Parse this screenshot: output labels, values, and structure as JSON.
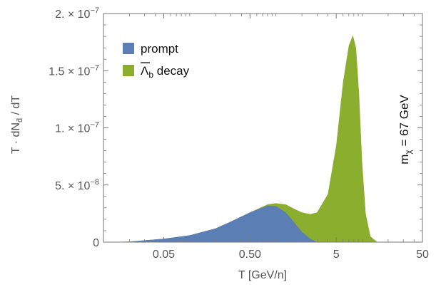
{
  "chart_data": {
    "type": "area",
    "xlabel": "T [GeV/n]",
    "ylabel": "T · dN",
    "ylabel_sub": "d̄",
    "ylabel_tail": " / dT",
    "xscale": "log",
    "xlim": [
      0.01,
      50
    ],
    "ylim": [
      0,
      2e-07
    ],
    "x_ticks": [
      {
        "value": 0.05,
        "label": "0.05"
      },
      {
        "value": 0.5,
        "label": "0.50"
      },
      {
        "value": 5,
        "label": "5"
      },
      {
        "value": 50,
        "label": "50"
      }
    ],
    "y_ticks": [
      {
        "value": 0,
        "mant": "0",
        "exp": ""
      },
      {
        "value": 5e-08,
        "mant": "5. × 10",
        "exp": "−8"
      },
      {
        "value": 1e-07,
        "mant": "1. × 10",
        "exp": "−7"
      },
      {
        "value": 1.5e-07,
        "mant": "1.5 × 10",
        "exp": "−7"
      },
      {
        "value": 2e-07,
        "mant": "2. × 10",
        "exp": "−7"
      }
    ],
    "legend_position": "top-left",
    "series": [
      {
        "name": "prompt",
        "color": "#5b7fb5",
        "x": [
          0.01,
          0.02,
          0.05,
          0.1,
          0.2,
          0.3,
          0.5,
          0.8,
          1.0,
          1.3,
          1.6,
          2.0,
          2.5,
          3.0
        ],
        "y": [
          0,
          5e-10,
          3e-09,
          6e-09,
          1.2e-08,
          1.8e-08,
          2.6e-08,
          3.2e-08,
          3.15e-08,
          2.6e-08,
          1.8e-08,
          9e-09,
          3e-09,
          0
        ]
      },
      {
        "name": "Λb decay",
        "legend_base": "Λ",
        "legend_sub": "b",
        "legend_suffix": " decay",
        "color": "#8bae2e",
        "x": [
          0.01,
          0.02,
          0.05,
          0.1,
          0.2,
          0.3,
          0.5,
          0.8,
          1.0,
          1.3,
          1.6,
          2.0,
          2.5,
          3.0,
          4.0,
          5.0,
          6.0,
          7.0,
          7.8,
          8.5,
          9.2,
          10.0,
          11.0,
          12.5,
          15.0
        ],
        "y": [
          0,
          5e-10,
          3e-09,
          6e-09,
          1.2e-08,
          1.8e-08,
          2.6e-08,
          3.3e-08,
          3.4e-08,
          3.3e-08,
          2.95e-08,
          2.6e-08,
          2.45e-08,
          2.6e-08,
          4.2e-08,
          8.5e-08,
          1.4e-07,
          1.72e-07,
          1.81e-07,
          1.7e-07,
          1.3e-07,
          7e-08,
          2.5e-08,
          5e-09,
          0
        ]
      }
    ],
    "annotation": {
      "base": "m",
      "sub": "χ",
      "rest": " = 67 GeV"
    }
  }
}
